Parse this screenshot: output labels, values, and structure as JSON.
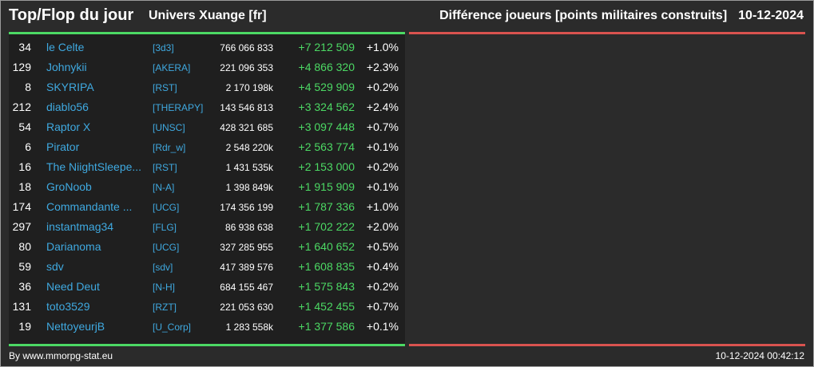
{
  "header": {
    "title": "Top/Flop du jour",
    "subtitle": "Univers Xuange [fr]",
    "stat_label": "Différence joueurs [points militaires construits]",
    "date": "10-12-2024"
  },
  "colors": {
    "gain": "#4cd964",
    "loss": "#d9534f",
    "link": "#3fa9e0"
  },
  "top": [
    {
      "rank": "34",
      "name": "le Celte",
      "alliance": "[3d3]",
      "total": "766 066 833",
      "diff": "+7 212 509",
      "pct": "+1.0%"
    },
    {
      "rank": "129",
      "name": "Johnykii",
      "alliance": "[AKERA]",
      "total": "221 096 353",
      "diff": "+4 866 320",
      "pct": "+2.3%"
    },
    {
      "rank": "8",
      "name": "SKYRIPA",
      "alliance": "[RST]",
      "total": "2 170 198k",
      "diff": "+4 529 909",
      "pct": "+0.2%"
    },
    {
      "rank": "212",
      "name": "diablo56",
      "alliance": "[THERAPY]",
      "total": "143 546 813",
      "diff": "+3 324 562",
      "pct": "+2.4%"
    },
    {
      "rank": "54",
      "name": "Raptor X",
      "alliance": "[UNSC]",
      "total": "428 321 685",
      "diff": "+3 097 448",
      "pct": "+0.7%"
    },
    {
      "rank": "6",
      "name": "Pirator",
      "alliance": "[Rdr_w]",
      "total": "2 548 220k",
      "diff": "+2 563 774",
      "pct": "+0.1%"
    },
    {
      "rank": "16",
      "name": "The NiightSleepe...",
      "alliance": "[RST]",
      "total": "1 431 535k",
      "diff": "+2 153 000",
      "pct": "+0.2%"
    },
    {
      "rank": "18",
      "name": "GroNoob",
      "alliance": "[N-A]",
      "total": "1 398 849k",
      "diff": "+1 915 909",
      "pct": "+0.1%"
    },
    {
      "rank": "174",
      "name": "Commandante ...",
      "alliance": "[UCG]",
      "total": "174 356 199",
      "diff": "+1 787 336",
      "pct": "+1.0%"
    },
    {
      "rank": "297",
      "name": "instantmag34",
      "alliance": "[FLG]",
      "total": "86 938 638",
      "diff": "+1 702 222",
      "pct": "+2.0%"
    },
    {
      "rank": "80",
      "name": "Darianoma",
      "alliance": "[UCG]",
      "total": "327 285 955",
      "diff": "+1 640 652",
      "pct": "+0.5%"
    },
    {
      "rank": "59",
      "name": "sdv",
      "alliance": "[sdv]",
      "total": "417 389 576",
      "diff": "+1 608 835",
      "pct": "+0.4%"
    },
    {
      "rank": "36",
      "name": "Need Deut",
      "alliance": "[N-H]",
      "total": "684 155 467",
      "diff": "+1 575 843",
      "pct": "+0.2%"
    },
    {
      "rank": "131",
      "name": "toto3529",
      "alliance": "[RZT]",
      "total": "221 053 630",
      "diff": "+1 452 455",
      "pct": "+0.7%"
    },
    {
      "rank": "19",
      "name": "NettoyeurjB",
      "alliance": "[U_Corp]",
      "total": "1 283 558k",
      "diff": "+1 377 586",
      "pct": "+0.1%"
    }
  ],
  "footer": {
    "credit": "By www.mmorpg-stat.eu",
    "timestamp": "10-12-2024 00:42:12"
  }
}
